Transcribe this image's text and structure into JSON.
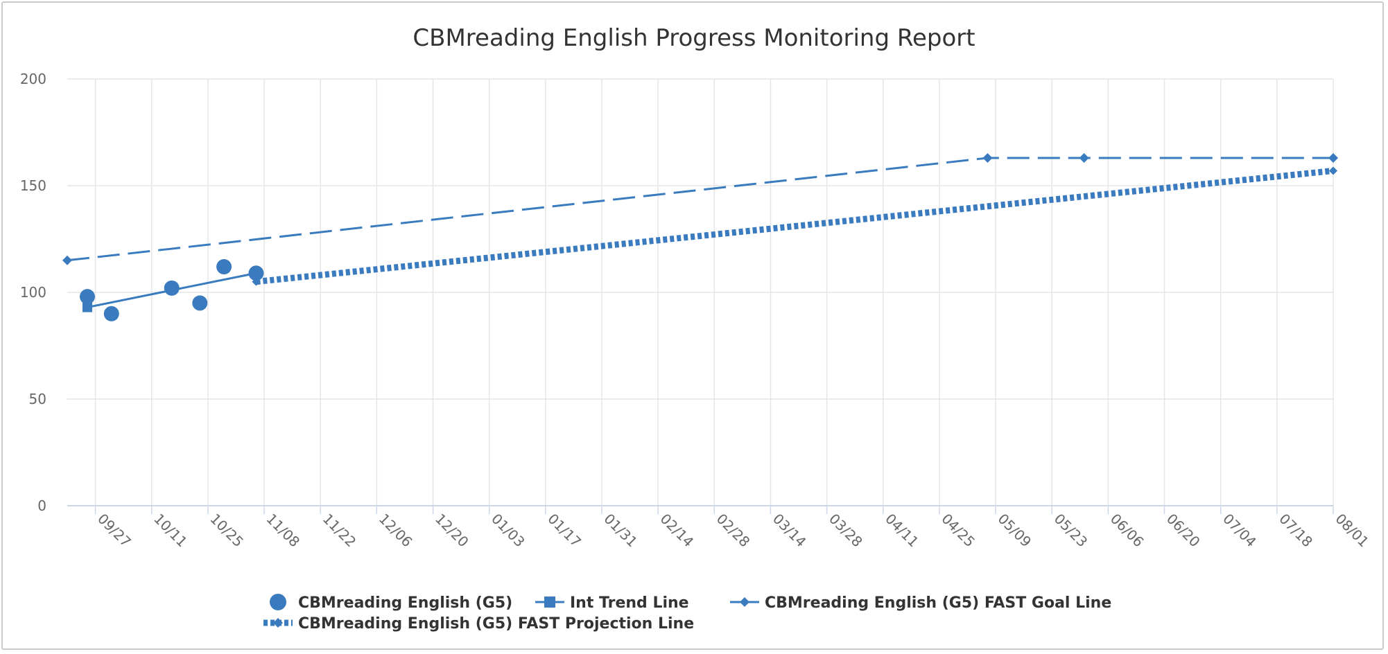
{
  "chart_data": {
    "type": "line",
    "title": "CBMreading English Progress Monitoring Report",
    "xlabel": "",
    "ylabel": "",
    "ylim": [
      0,
      200
    ],
    "yticks": [
      0,
      50,
      100,
      150,
      200
    ],
    "xlim": [
      "2017-09-20",
      "2018-08-01"
    ],
    "xticks": [
      "2017-09-27",
      "2017-10-11",
      "2017-10-25",
      "2017-11-08",
      "2017-11-22",
      "2017-12-06",
      "2017-12-20",
      "2018-01-03",
      "2018-01-17",
      "2018-01-31",
      "2018-02-14",
      "2018-02-28",
      "2018-03-14",
      "2018-03-28",
      "2018-04-11",
      "2018-04-25",
      "2018-05-09",
      "2018-05-23",
      "2018-06-06",
      "2018-06-20",
      "2018-07-04",
      "2018-07-18",
      "2018-08-01"
    ],
    "xtick_labels": [
      "09/27",
      "10/11",
      "10/25",
      "11/08",
      "11/22",
      "12/06",
      "12/20",
      "01/03",
      "01/17",
      "01/31",
      "02/14",
      "02/28",
      "03/14",
      "03/28",
      "04/11",
      "04/25",
      "05/09",
      "05/23",
      "06/06",
      "06/20",
      "07/04",
      "07/18",
      "08/01"
    ],
    "grid": true,
    "legend_position": "bottom",
    "series": [
      {
        "name": "CBMreading English (G5)",
        "style": "scatter",
        "marker": "circle",
        "color": "#3a7bbf",
        "x": [
          "2017-09-25",
          "2017-10-01",
          "2017-10-16",
          "2017-10-23",
          "2017-10-29",
          "2017-11-06"
        ],
        "y": [
          98,
          90,
          102,
          95,
          112,
          109
        ]
      },
      {
        "name": "Int Trend Line",
        "style": "solid",
        "marker": "square",
        "color": "#3a7bbf",
        "x": [
          "2017-09-25",
          "2017-11-06"
        ],
        "y": [
          93,
          109
        ]
      },
      {
        "name": "CBMreading English (G5) FAST Goal Line",
        "style": "dashed",
        "marker": "diamond",
        "color": "#3a7bbf",
        "x": [
          "2017-09-20",
          "2018-05-07",
          "2018-05-31",
          "2018-08-01"
        ],
        "y": [
          115,
          163,
          163,
          163
        ]
      },
      {
        "name": "CBMreading English (G5) FAST Projection Line",
        "style": "dotted",
        "marker": "diamond",
        "color": "#3a7bbf",
        "x": [
          "2017-11-06",
          "2018-08-01"
        ],
        "y": [
          105,
          157
        ]
      }
    ]
  }
}
